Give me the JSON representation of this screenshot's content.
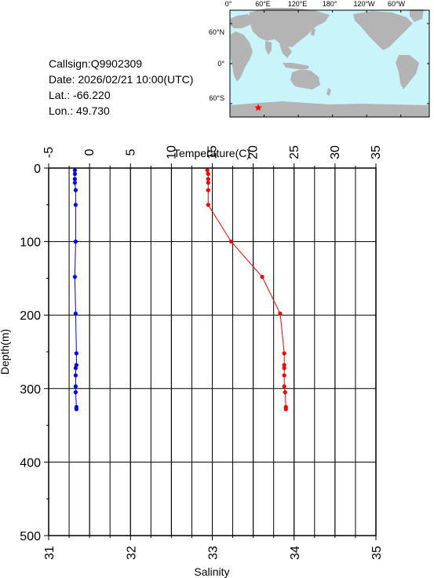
{
  "info": {
    "callsign": "Callsign:Q9902309",
    "date": "Date:  2026/02/21 10:00(UTC)",
    "lat": "Lat.:  -66.220",
    "lon": "Lon.:   49.730"
  },
  "map": {
    "top_labels": [
      "0°",
      "60°E",
      "120°E",
      "180°",
      "120°W",
      "60°W"
    ],
    "side_labels": [
      "60°N",
      "0°",
      "60°S"
    ],
    "ocean_color": "#c8f4fa",
    "land_color": "#b4b4b4",
    "marker_color": "#ff0000",
    "marker": "star-icon",
    "station": {
      "lat": -66.22,
      "lon": 49.73
    }
  },
  "chart_data": {
    "type": "line",
    "temperature_axis": {
      "label": "Temperature(C)",
      "range": [
        -5,
        35
      ],
      "ticks": [
        "-5",
        "0",
        "5",
        "10",
        "15",
        "20",
        "25",
        "30",
        "35"
      ],
      "position": "top"
    },
    "salinity_axis": {
      "label": "Salinity",
      "range": [
        31,
        35
      ],
      "ticks": [
        "31",
        "32",
        "33",
        "34",
        "35"
      ],
      "position": "bottom"
    },
    "depth_axis": {
      "label": "Depth(m)",
      "range": [
        0,
        500
      ],
      "ticks": [
        "0",
        "100",
        "200",
        "300",
        "400",
        "500"
      ],
      "inverted": true
    },
    "grid": true,
    "series": [
      {
        "name": "",
        "axis": "salinity",
        "color": "#0000ff",
        "points": [
          {
            "value": 31.32,
            "depth": 3
          },
          {
            "value": 31.32,
            "depth": 8
          },
          {
            "value": 31.32,
            "depth": 15
          },
          {
            "value": 31.32,
            "depth": 20
          },
          {
            "value": 31.33,
            "depth": 30
          },
          {
            "value": 31.33,
            "depth": 50
          },
          {
            "value": 31.33,
            "depth": 100
          },
          {
            "value": 31.32,
            "depth": 148
          },
          {
            "value": 31.33,
            "depth": 198
          },
          {
            "value": 31.34,
            "depth": 252
          },
          {
            "value": 31.34,
            "depth": 268
          },
          {
            "value": 31.33,
            "depth": 272
          },
          {
            "value": 31.33,
            "depth": 282
          },
          {
            "value": 31.33,
            "depth": 297
          },
          {
            "value": 31.33,
            "depth": 305
          },
          {
            "value": 31.34,
            "depth": 325
          },
          {
            "value": 31.34,
            "depth": 328
          }
        ]
      },
      {
        "name": "",
        "axis": "temperature",
        "color": "#ff0000",
        "points": [
          {
            "value": 14.4,
            "depth": 3
          },
          {
            "value": 14.5,
            "depth": 8
          },
          {
            "value": 14.5,
            "depth": 15
          },
          {
            "value": 14.5,
            "depth": 20
          },
          {
            "value": 14.5,
            "depth": 30
          },
          {
            "value": 14.5,
            "depth": 50
          },
          {
            "value": 17.3,
            "depth": 100
          },
          {
            "value": 21.1,
            "depth": 148
          },
          {
            "value": 23.3,
            "depth": 198
          },
          {
            "value": 23.8,
            "depth": 252
          },
          {
            "value": 23.8,
            "depth": 268
          },
          {
            "value": 23.8,
            "depth": 272
          },
          {
            "value": 23.8,
            "depth": 282
          },
          {
            "value": 23.8,
            "depth": 297
          },
          {
            "value": 23.9,
            "depth": 305
          },
          {
            "value": 24.0,
            "depth": 325
          },
          {
            "value": 24.0,
            "depth": 328
          }
        ]
      }
    ]
  }
}
